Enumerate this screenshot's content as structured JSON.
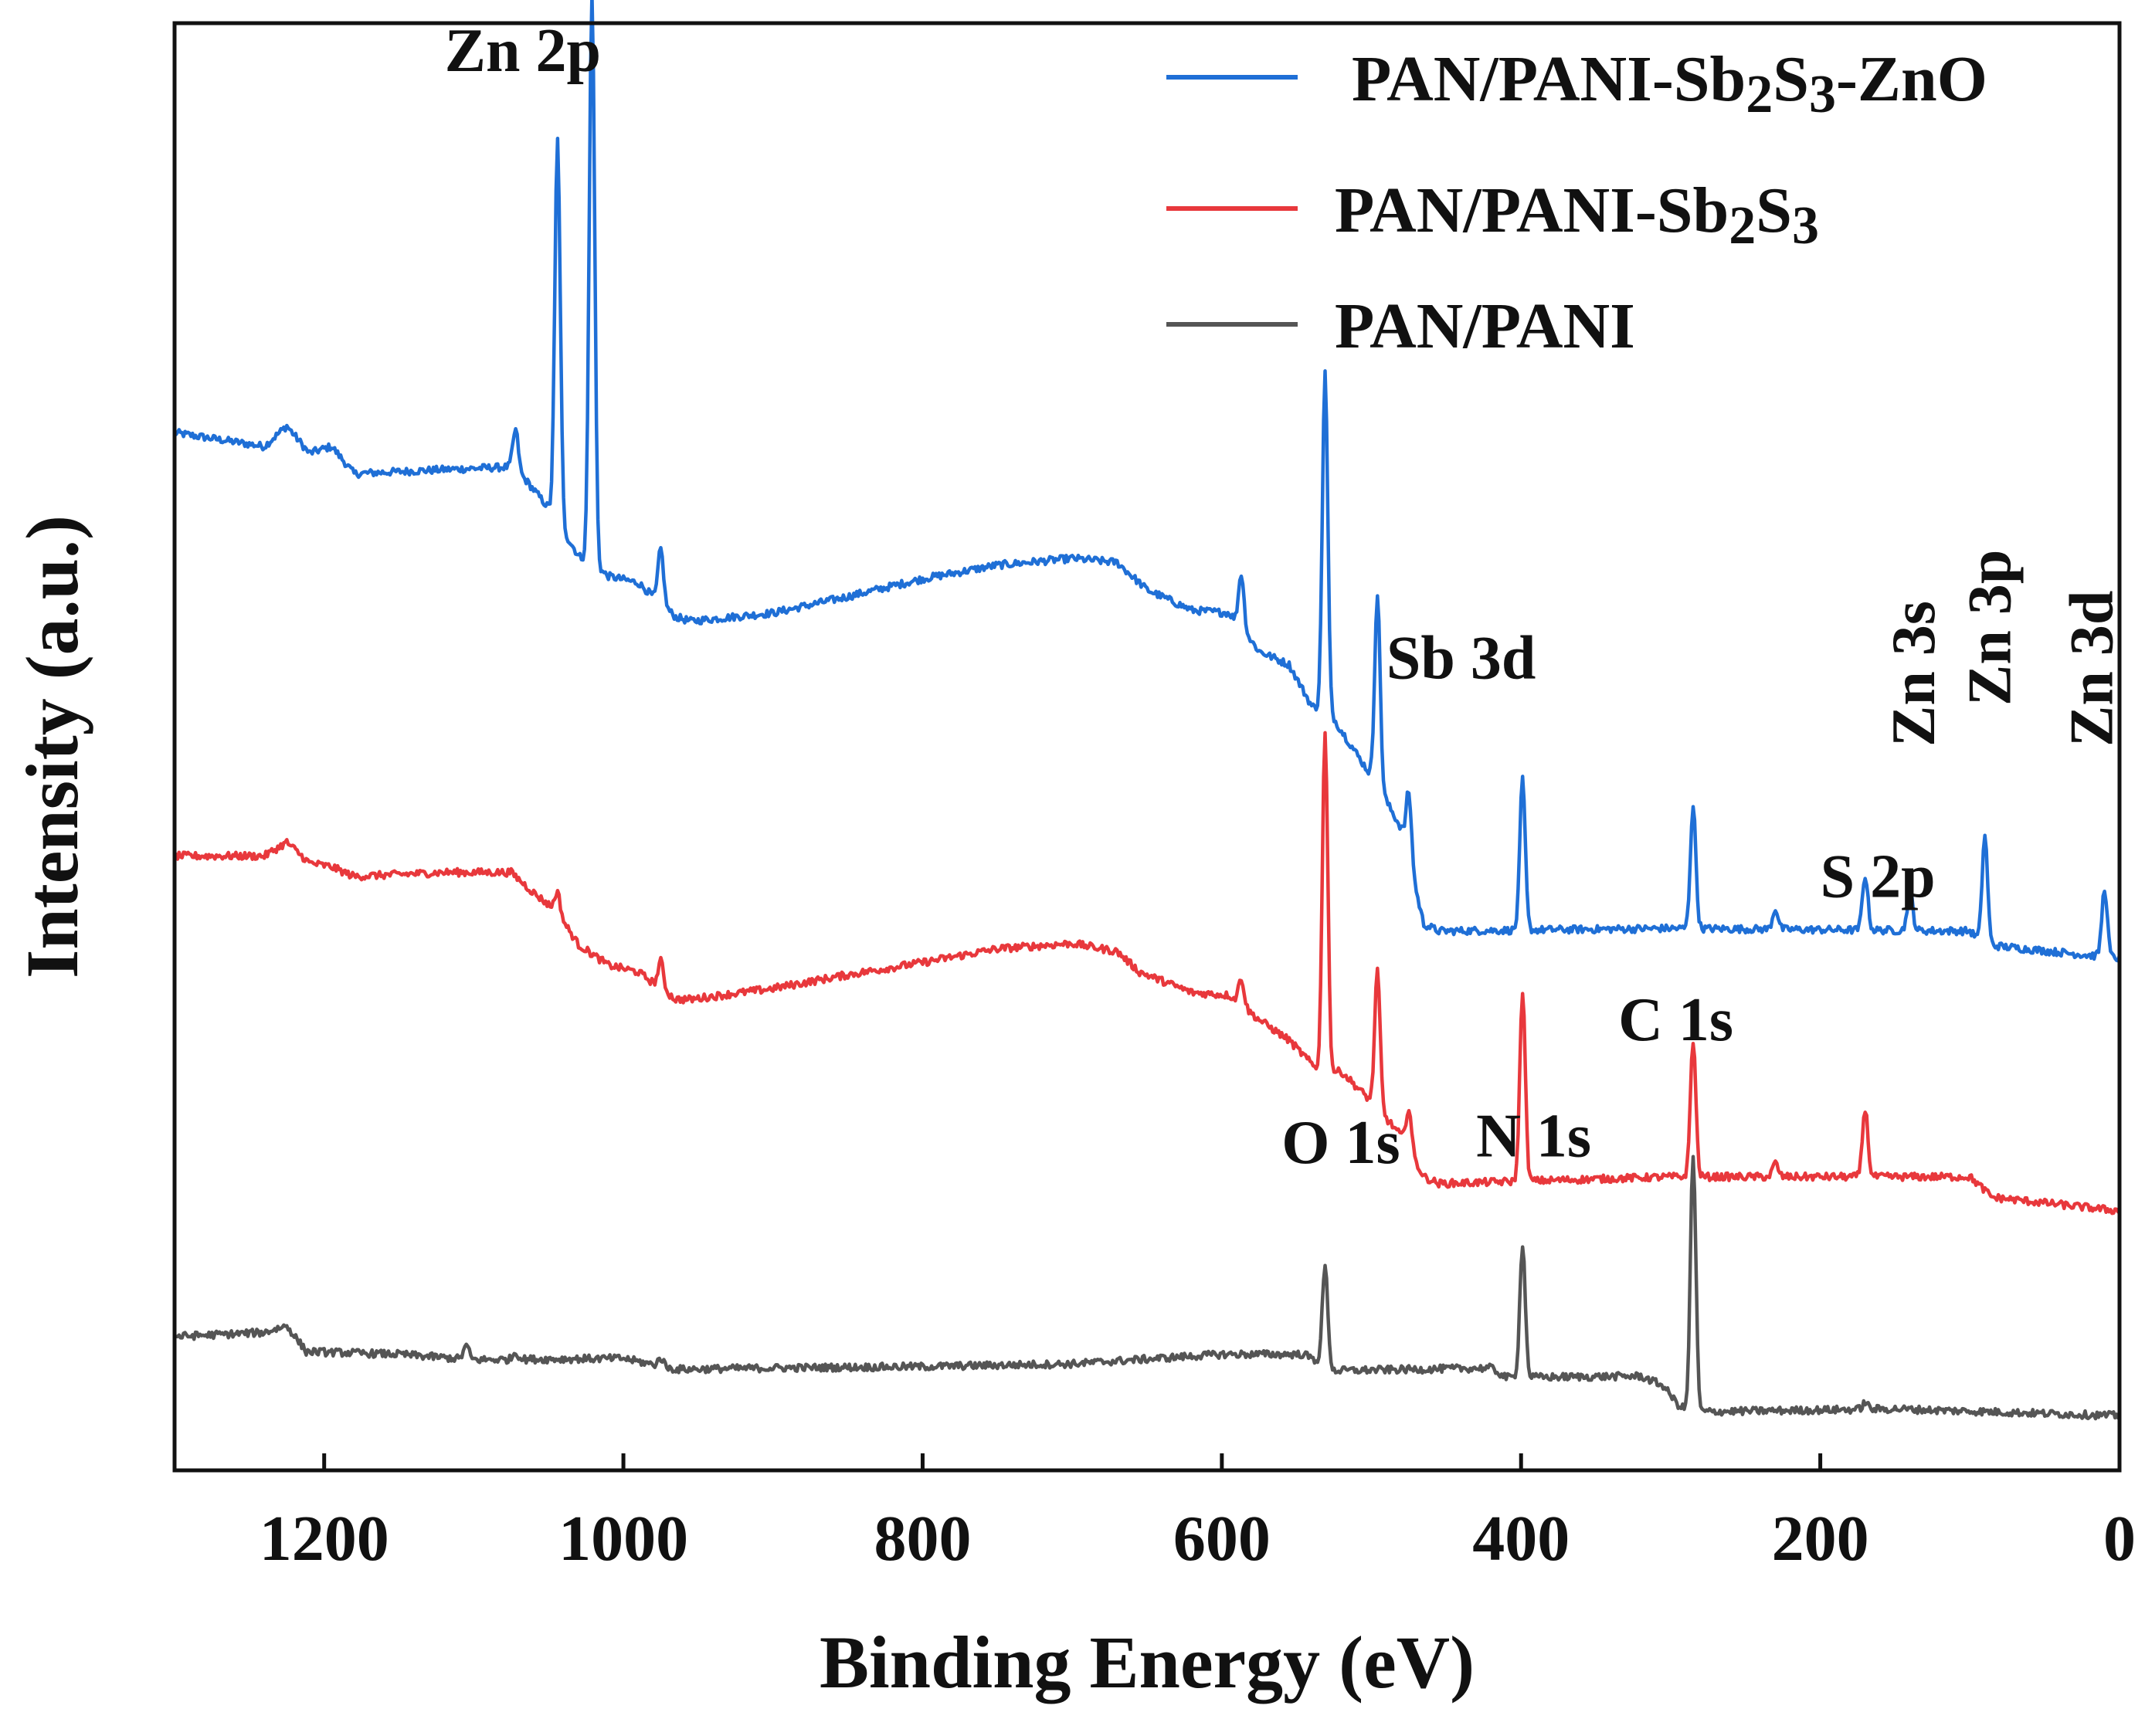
{
  "chart_data": {
    "type": "line",
    "xlabel": "Binding Energy (eV)",
    "ylabel": "Intensity (a.u.)",
    "xlim": [
      1300,
      0
    ],
    "x_reversed": true,
    "xticks": [
      1200,
      1000,
      800,
      600,
      400,
      200,
      0
    ],
    "y_ticks_shown": false,
    "legend_position": "top-right",
    "legend": [
      {
        "series": "PAN/PANI-Sb2S3-ZnO",
        "parts": [
          [
            "PAN/PANI-Sb",
            "normal"
          ],
          [
            "2",
            "sub"
          ],
          [
            "S",
            "normal"
          ],
          [
            "3",
            "sub"
          ],
          [
            "-ZnO",
            "normal"
          ]
        ]
      },
      {
        "series": "PAN/PANI-Sb2S3",
        "parts": [
          [
            "PAN/PANI-Sb",
            "normal"
          ],
          [
            "2",
            "sub"
          ],
          [
            "S",
            "normal"
          ],
          [
            "3",
            "sub"
          ]
        ]
      },
      {
        "series": "PAN/PANI",
        "parts": [
          [
            "PAN/PANI",
            "normal"
          ]
        ]
      }
    ],
    "series": [
      {
        "name": "PAN/PANI-Sb2S3-ZnO",
        "color": "#1f6fd6",
        "baseline": [
          [
            1300,
            72
          ],
          [
            1240,
            71
          ],
          [
            1225,
            72.5
          ],
          [
            1210,
            70.5
          ],
          [
            1195,
            71
          ],
          [
            1180,
            69
          ],
          [
            1120,
            69.3
          ],
          [
            1075,
            69.5
          ],
          [
            1065,
            68.5
          ],
          [
            1050,
            66.5
          ],
          [
            1030,
            63
          ],
          [
            1010,
            61.5
          ],
          [
            990,
            61
          ],
          [
            965,
            58.5
          ],
          [
            955,
            58.2
          ],
          [
            900,
            58.8
          ],
          [
            850,
            60
          ],
          [
            800,
            61.3
          ],
          [
            750,
            62.3
          ],
          [
            700,
            62.8
          ],
          [
            670,
            62.5
          ],
          [
            650,
            60.5
          ],
          [
            620,
            59
          ],
          [
            595,
            58.8
          ],
          [
            575,
            56
          ],
          [
            555,
            55
          ],
          [
            540,
            52
          ],
          [
            525,
            51
          ],
          [
            510,
            48.5
          ],
          [
            495,
            46
          ],
          [
            480,
            43
          ],
          [
            465,
            36
          ],
          [
            455,
            35.5
          ],
          [
            300,
            35.7
          ],
          [
            100,
            35.5
          ],
          [
            90,
            34.5
          ],
          [
            0,
            33.5
          ]
        ],
        "peaks": [
          [
            1072,
            3
          ],
          [
            1044,
            28
          ],
          [
            1021,
            42
          ],
          [
            975,
            4
          ],
          [
            587,
            4
          ],
          [
            531,
            25
          ],
          [
            496,
            14
          ],
          [
            475,
            5
          ],
          [
            399,
            11
          ],
          [
            285,
            9
          ],
          [
            230,
            1.5
          ],
          [
            170,
            4
          ],
          [
            140,
            3
          ],
          [
            90,
            8
          ],
          [
            10,
            5
          ]
        ]
      },
      {
        "name": "PAN/PANI-Sb2S3",
        "color": "#e8383c",
        "baseline": [
          [
            1300,
            41
          ],
          [
            1240,
            41
          ],
          [
            1225,
            42
          ],
          [
            1210,
            40.5
          ],
          [
            1195,
            40.2
          ],
          [
            1180,
            39.5
          ],
          [
            1120,
            39.8
          ],
          [
            1075,
            39.8
          ],
          [
            1060,
            38.3
          ],
          [
            1045,
            37
          ],
          [
            1030,
            34.5
          ],
          [
            1010,
            33
          ],
          [
            990,
            32.5
          ],
          [
            965,
            30.5
          ],
          [
            955,
            30.5
          ],
          [
            900,
            31.3
          ],
          [
            850,
            32.3
          ],
          [
            800,
            33.2
          ],
          [
            750,
            34.2
          ],
          [
            700,
            34.6
          ],
          [
            670,
            34
          ],
          [
            655,
            32.5
          ],
          [
            620,
            31
          ],
          [
            595,
            30.8
          ],
          [
            575,
            29
          ],
          [
            555,
            27.5
          ],
          [
            535,
            25.2
          ],
          [
            520,
            25.2
          ],
          [
            500,
            23
          ],
          [
            480,
            20.5
          ],
          [
            465,
            17.5
          ],
          [
            455,
            17
          ],
          [
            300,
            17.5
          ],
          [
            100,
            17.5
          ],
          [
            85,
            16
          ],
          [
            0,
            15
          ]
        ],
        "peaks": [
          [
            1044,
            1.5
          ],
          [
            975,
            2
          ],
          [
            587,
            2
          ],
          [
            531,
            25
          ],
          [
            496,
            10
          ],
          [
            475,
            3
          ],
          [
            399,
            14
          ],
          [
            285,
            10
          ],
          [
            230,
            1
          ],
          [
            170,
            5
          ]
        ]
      },
      {
        "name": "PAN/PANI",
        "color": "#555555",
        "baseline": [
          [
            1300,
            5.8
          ],
          [
            1240,
            6.1
          ],
          [
            1225,
            6.6
          ],
          [
            1212,
            4.7
          ],
          [
            1150,
            4.5
          ],
          [
            1100,
            4.1
          ],
          [
            1000,
            4.2
          ],
          [
            965,
            3.4
          ],
          [
            900,
            3.5
          ],
          [
            800,
            3.6
          ],
          [
            700,
            3.8
          ],
          [
            600,
            4.5
          ],
          [
            545,
            4.5
          ],
          [
            525,
            3.3
          ],
          [
            470,
            3.4
          ],
          [
            420,
            3.5
          ],
          [
            410,
            2.8
          ],
          [
            320,
            2.9
          ],
          [
            305,
            2.2
          ],
          [
            295,
            0.8
          ],
          [
            288,
            0.3
          ],
          [
            275,
            0.3
          ],
          [
            150,
            0.5
          ],
          [
            0,
            0
          ]
        ],
        "peaks": [
          [
            1105,
            1
          ],
          [
            1072,
            0.5
          ],
          [
            975,
            0.6
          ],
          [
            531,
            7.3
          ],
          [
            399,
            9.8
          ],
          [
            285,
            18.8
          ],
          [
            170,
            0.5
          ]
        ]
      }
    ],
    "annotations": [
      {
        "text": "Zn 2p",
        "x": 1015,
        "y": 98.5,
        "rotation": 0,
        "anchor": "end"
      },
      {
        "text": "Sb 3d",
        "x": 490,
        "y": 54,
        "rotation": 0,
        "anchor": "start"
      },
      {
        "text": "S 2p",
        "x": 200,
        "y": 38,
        "rotation": 0,
        "anchor": "start"
      },
      {
        "text": "C 1s",
        "x": 335,
        "y": 27.5,
        "rotation": 0,
        "anchor": "start"
      },
      {
        "text": "O 1s",
        "x": 560,
        "y": 18.5,
        "rotation": 0,
        "anchor": "start"
      },
      {
        "text": "N 1s",
        "x": 430,
        "y": 19,
        "rotation": 0,
        "anchor": "start"
      },
      {
        "text": "Zn 3s",
        "x": 124,
        "y": 49,
        "rotation": -90,
        "anchor": "start"
      },
      {
        "text": "Zn 3p",
        "x": 73,
        "y": 52,
        "rotation": -90,
        "anchor": "start"
      },
      {
        "text": "Zn 3d",
        "x": 5,
        "y": 49,
        "rotation": -90,
        "anchor": "start"
      }
    ],
    "ylim": [
      -4,
      102
    ]
  }
}
